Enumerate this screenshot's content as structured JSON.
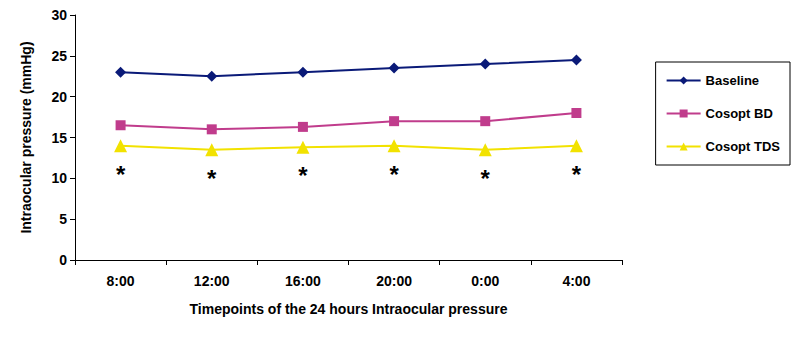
{
  "chart_data": {
    "type": "line",
    "x_label": "Timepoints of the 24 hours Intraocular pressure",
    "y_label": "Intraocular pressure (mmHg)",
    "categories": [
      "8:00",
      "12:00",
      "16:00",
      "20:00",
      "0:00",
      "4:00"
    ],
    "series": [
      {
        "name": "Baseline",
        "color": "#0a1a78",
        "marker": "diamond",
        "values": [
          23,
          22.5,
          23,
          23.5,
          24,
          24.5
        ]
      },
      {
        "name": "Cosopt BD",
        "color": "#c03c8c",
        "marker": "square",
        "values": [
          16.5,
          16,
          16.3,
          17,
          17,
          18
        ]
      },
      {
        "name": "Cosopt TDS",
        "color": "#f2e200",
        "marker": "triangle",
        "values": [
          14,
          13.5,
          13.8,
          14,
          13.5,
          14
        ]
      }
    ],
    "annotations": [
      {
        "text": "*",
        "series": "Cosopt TDS",
        "category": "8:00"
      },
      {
        "text": "*",
        "series": "Cosopt TDS",
        "category": "12:00"
      },
      {
        "text": "*",
        "series": "Cosopt TDS",
        "category": "16:00"
      },
      {
        "text": "*",
        "series": "Cosopt TDS",
        "category": "20:00"
      },
      {
        "text": "*",
        "series": "Cosopt TDS",
        "category": "0:00"
      },
      {
        "text": "*",
        "series": "Cosopt TDS",
        "category": "4:00"
      }
    ],
    "ylim": [
      0,
      30
    ],
    "yticks": [
      0,
      5,
      10,
      15,
      20,
      25,
      30
    ],
    "grid": false,
    "legend": "right"
  }
}
